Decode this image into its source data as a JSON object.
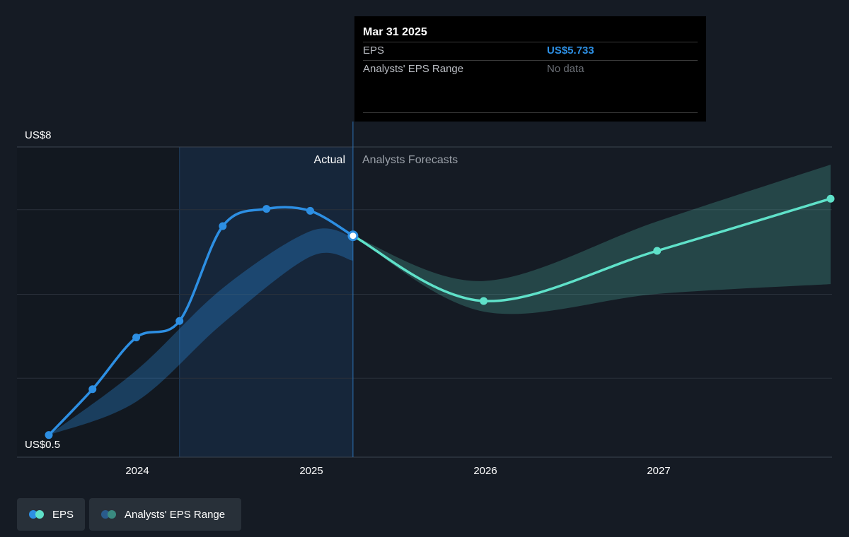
{
  "tooltip": {
    "date": "Mar 31 2025",
    "eps_label": "EPS",
    "eps_value": "US$5.733",
    "range_label": "Analysts' EPS Range",
    "range_value": "No data"
  },
  "chart_data": {
    "type": "line",
    "x_axis": {
      "type": "time",
      "range": [
        "2023-06-30",
        "2027-12-31"
      ],
      "tick_labels": [
        "2024",
        "2025",
        "2026",
        "2027"
      ]
    },
    "y_axis": {
      "range": [
        0.5,
        8
      ],
      "tick_labels": [
        {
          "value": 8,
          "label": "US$8"
        },
        {
          "value": 0.5,
          "label": "US$0.5"
        }
      ],
      "gridlines": [
        2.1,
        4.24,
        6.4,
        8
      ]
    },
    "regions": {
      "actual_label": "Actual",
      "forecast_label": "Analysts Forecasts",
      "highlight_start": "2024-03-31",
      "divider": "2025-03-31"
    },
    "series": [
      {
        "name": "EPS",
        "color": "#2d8fe3",
        "points": [
          {
            "date": "2023-06-30",
            "value": 0.65
          },
          {
            "date": "2023-09-30",
            "value": 1.82
          },
          {
            "date": "2023-12-31",
            "value": 3.14
          },
          {
            "date": "2024-03-31",
            "value": 3.56
          },
          {
            "date": "2024-06-30",
            "value": 5.98
          },
          {
            "date": "2024-09-30",
            "value": 6.42
          },
          {
            "date": "2024-12-31",
            "value": 6.37
          },
          {
            "date": "2025-03-31",
            "value": 5.733
          }
        ]
      },
      {
        "name": "EPS forecast",
        "color": "#5fe1c9",
        "points": [
          {
            "date": "2025-03-31",
            "value": 5.733
          },
          {
            "date": "2025-12-31",
            "value": 4.07
          },
          {
            "date": "2026-12-31",
            "value": 5.35
          },
          {
            "date": "2027-12-31",
            "value": 6.68
          }
        ]
      },
      {
        "name": "Analysts' EPS Range (past)",
        "color": "#2d8fe3",
        "low": [
          {
            "date": "2023-06-30",
            "value": 0.65
          },
          {
            "date": "2023-12-31",
            "value": 1.5
          },
          {
            "date": "2024-06-30",
            "value": 3.5
          },
          {
            "date": "2024-12-31",
            "value": 5.2
          },
          {
            "date": "2025-03-31",
            "value": 5.1
          }
        ],
        "high": [
          {
            "date": "2023-06-30",
            "value": 0.65
          },
          {
            "date": "2023-12-31",
            "value": 2.3
          },
          {
            "date": "2024-06-30",
            "value": 4.4
          },
          {
            "date": "2024-12-31",
            "value": 5.85
          },
          {
            "date": "2025-03-31",
            "value": 5.7
          }
        ]
      },
      {
        "name": "Analysts' EPS Range (forecast)",
        "color": "#5fe1c9",
        "low": [
          {
            "date": "2025-03-31",
            "value": 5.733
          },
          {
            "date": "2025-12-31",
            "value": 3.8
          },
          {
            "date": "2026-12-31",
            "value": 4.25
          },
          {
            "date": "2027-12-31",
            "value": 4.5
          }
        ],
        "high": [
          {
            "date": "2025-03-31",
            "value": 5.733
          },
          {
            "date": "2025-12-31",
            "value": 4.58
          },
          {
            "date": "2026-12-31",
            "value": 6.1
          },
          {
            "date": "2027-12-31",
            "value": 7.55
          }
        ]
      }
    ],
    "legend": {
      "placement": "bottom-left",
      "items": [
        {
          "label": "EPS",
          "colors": [
            "#2d8fe3",
            "#5fe1c9"
          ]
        },
        {
          "label": "Analysts' EPS Range",
          "colors": [
            "#2a5b8c",
            "#3a8a80"
          ]
        }
      ]
    }
  }
}
